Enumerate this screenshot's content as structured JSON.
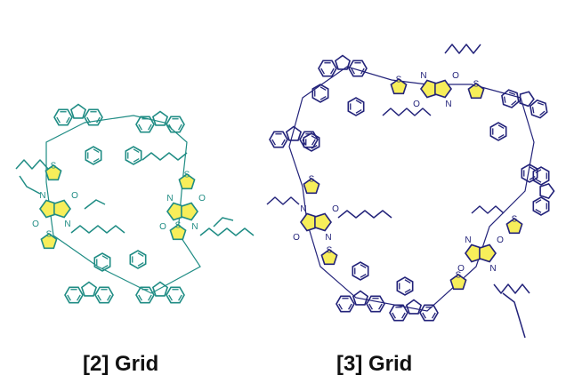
{
  "labels": {
    "grid2": "[2] Grid",
    "grid3": "[3] Grid"
  },
  "atoms": {
    "sulfur": "S",
    "nitrogen": "N",
    "oxygen": "O"
  },
  "colors": {
    "grid2_bond": "#1f8c84",
    "grid3_bond": "#23237a",
    "thiophene_fill": "#f7ee5a",
    "label_text": "#111111"
  }
}
